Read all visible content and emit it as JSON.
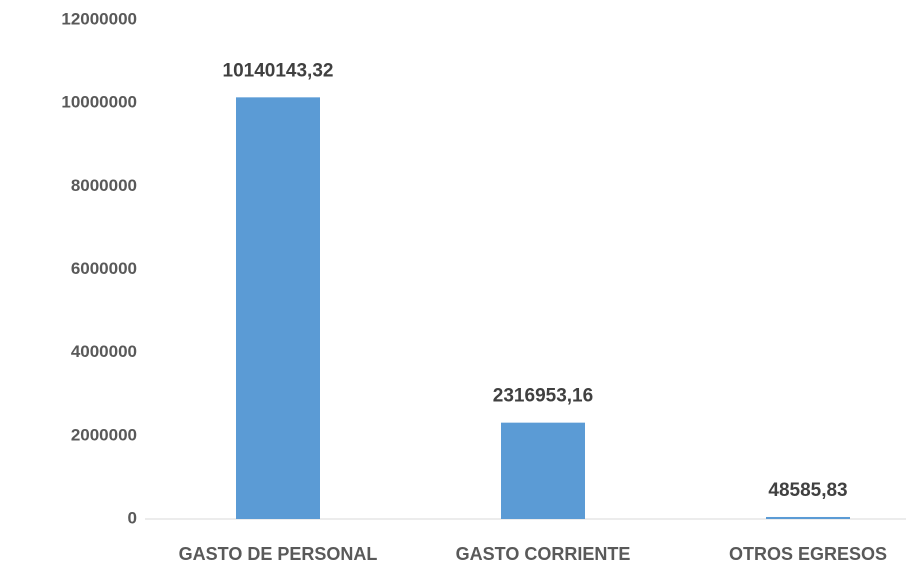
{
  "chart_data": {
    "type": "bar",
    "categories": [
      "GASTO DE PERSONAL",
      "GASTO CORRIENTE",
      "OTROS EGRESOS"
    ],
    "values": [
      10140143.32,
      2316953.16,
      48585.83
    ],
    "value_labels": [
      "10140143,32",
      "2316953,16",
      "48585,83"
    ],
    "color": "#5b9bd5",
    "ylim": [
      0,
      12000000
    ],
    "yticks": [
      0,
      2000000,
      4000000,
      6000000,
      8000000,
      10000000,
      12000000
    ],
    "grid": false
  }
}
